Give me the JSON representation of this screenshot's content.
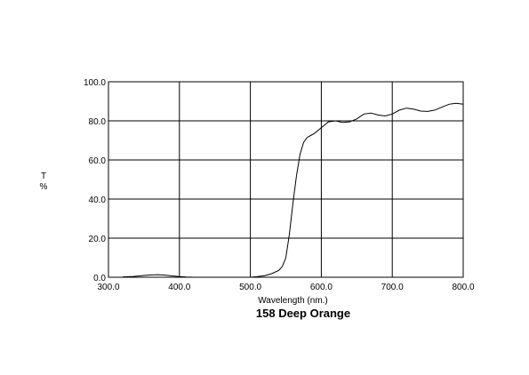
{
  "chart_data": {
    "type": "line",
    "title": "158 Deep Orange",
    "xlabel": "Wavelength (nm.)",
    "ylabel_top": "T",
    "ylabel_bottom": "%",
    "xlim": [
      300,
      800
    ],
    "ylim": [
      0,
      100
    ],
    "grid": true,
    "x_ticks": [
      300,
      400,
      500,
      600,
      700,
      800
    ],
    "x_tick_labels": [
      "300.0",
      "400.0",
      "500.0",
      "600.0",
      "700.0",
      "800.0"
    ],
    "y_ticks": [
      0,
      20,
      40,
      60,
      80,
      100
    ],
    "y_tick_labels": [
      "0.0",
      "20.0",
      "40.0",
      "60.0",
      "80.0",
      "100.0"
    ],
    "line_color": "#000000",
    "series": [
      {
        "x": [
          320,
          335,
          350,
          360,
          370,
          380,
          390,
          400,
          410,
          420,
          430,
          450,
          480,
          500,
          510,
          520,
          530,
          540,
          545,
          550,
          555,
          560,
          565,
          570,
          575,
          580,
          585,
          590,
          600,
          610,
          620,
          630,
          640,
          650,
          660,
          670,
          680,
          690,
          700,
          710,
          720,
          730,
          740,
          750,
          760,
          770,
          780,
          790,
          800
        ],
        "y": [
          0.2,
          0.4,
          0.9,
          1.2,
          1.3,
          1.1,
          0.7,
          0.3,
          0.1,
          0,
          0,
          0,
          0,
          0,
          0.3,
          0.8,
          1.8,
          3.5,
          5.5,
          10,
          22,
          38,
          52,
          63,
          69,
          71.5,
          72.5,
          73.5,
          76.5,
          79.5,
          80,
          79.2,
          79.5,
          81,
          83.5,
          84,
          83,
          82.5,
          83.5,
          85.5,
          86.5,
          86,
          85,
          84.8,
          85.5,
          87,
          88.5,
          89,
          88.5
        ]
      }
    ]
  }
}
